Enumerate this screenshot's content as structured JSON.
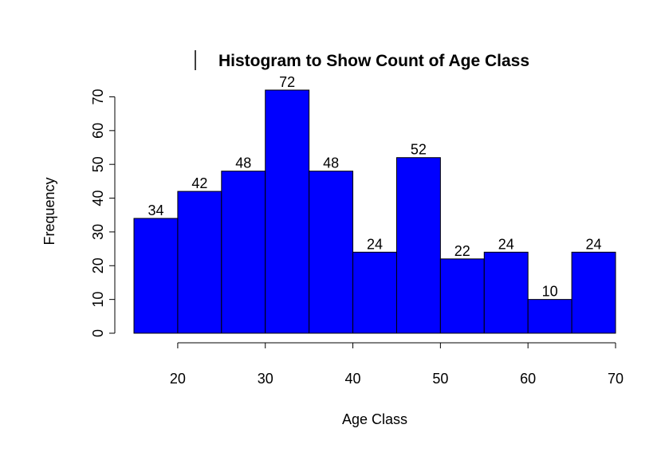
{
  "chart_data": {
    "type": "bar",
    "title": "Histogram to Show Count of Age Class",
    "xlabel": "Age Class",
    "ylabel": "Frequency",
    "bin_edges": [
      15,
      20,
      25,
      30,
      35,
      40,
      45,
      50,
      55,
      60,
      65,
      70
    ],
    "values": [
      34,
      42,
      48,
      72,
      48,
      24,
      52,
      22,
      24,
      10,
      24
    ],
    "xlim": [
      15,
      70
    ],
    "ylim": [
      0,
      72
    ],
    "x_ticks": [
      20,
      30,
      40,
      50,
      60,
      70
    ],
    "y_ticks": [
      0,
      10,
      20,
      30,
      40,
      50,
      60,
      70
    ],
    "bar_color": "#0000ff",
    "grid": false
  }
}
